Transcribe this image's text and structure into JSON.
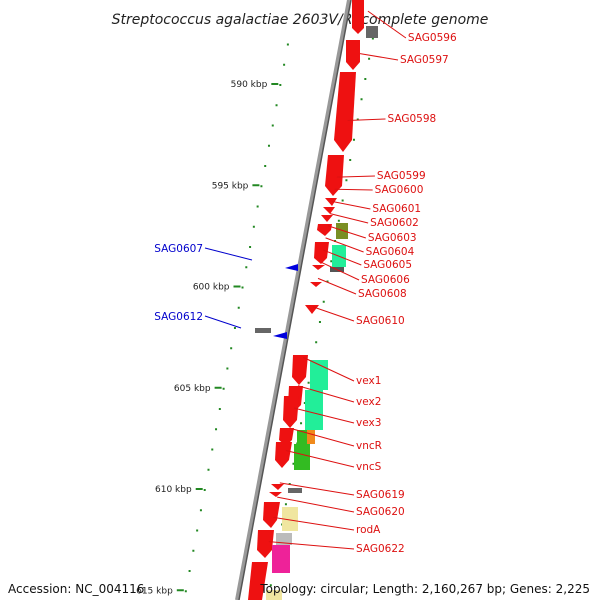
{
  "title": "Streptococcus agalactiae 2603V/R, complete genome",
  "footer": {
    "accession": "Accession: NC_004116",
    "topology": "Topology: circular; Length: 2,160,267 bp; Genes: 2,225"
  },
  "colors": {
    "forward_label": "#dd1111",
    "reverse_label": "#0000cc",
    "gene_red": "#ee1111",
    "gene_blue": "#0000dd",
    "tick_green": "#228822",
    "backbone": "#777777"
  },
  "scale_marks": [
    {
      "label": "590 kbp",
      "kbp": 590
    },
    {
      "label": "595 kbp",
      "kbp": 595
    },
    {
      "label": "600 kbp",
      "kbp": 600
    },
    {
      "label": "605 kbp",
      "kbp": 605
    },
    {
      "label": "610 kbp",
      "kbp": 610
    },
    {
      "label": "615 kbp",
      "kbp": 615
    }
  ],
  "forward_labels": [
    {
      "name": "SAG0596",
      "kbp": 586.4
    },
    {
      "name": "SAG0597",
      "kbp": 588.5
    },
    {
      "name": "SAG0598",
      "kbp": 591.8
    },
    {
      "name": "SAG0599",
      "kbp": 594.6
    },
    {
      "name": "SAG0600",
      "kbp": 595.2
    },
    {
      "name": "SAG0601",
      "kbp": 595.8
    },
    {
      "name": "SAG0602",
      "kbp": 596.4
    },
    {
      "name": "SAG0603",
      "kbp": 597.0
    },
    {
      "name": "SAG0604",
      "kbp": 597.6
    },
    {
      "name": "SAG0605",
      "kbp": 598.2
    },
    {
      "name": "SAG0606",
      "kbp": 598.8
    },
    {
      "name": "SAG0608",
      "kbp": 599.6
    },
    {
      "name": "SAG0610",
      "kbp": 601.0
    },
    {
      "name": "vex1",
      "kbp": 603.5
    },
    {
      "name": "vex2",
      "kbp": 604.9
    },
    {
      "name": "vex3",
      "kbp": 606.0
    },
    {
      "name": "vncR",
      "kbp": 607.0
    },
    {
      "name": "vncS",
      "kbp": 608.1
    },
    {
      "name": "SAG0619",
      "kbp": 609.7
    },
    {
      "name": "SAG0620",
      "kbp": 610.4
    },
    {
      "name": "rodA",
      "kbp": 611.4
    },
    {
      "name": "SAG0622",
      "kbp": 612.6
    }
  ],
  "reverse_labels": [
    {
      "name": "SAG0607",
      "kbp": 598.5
    },
    {
      "name": "SAG0612",
      "kbp": 602.3
    }
  ]
}
